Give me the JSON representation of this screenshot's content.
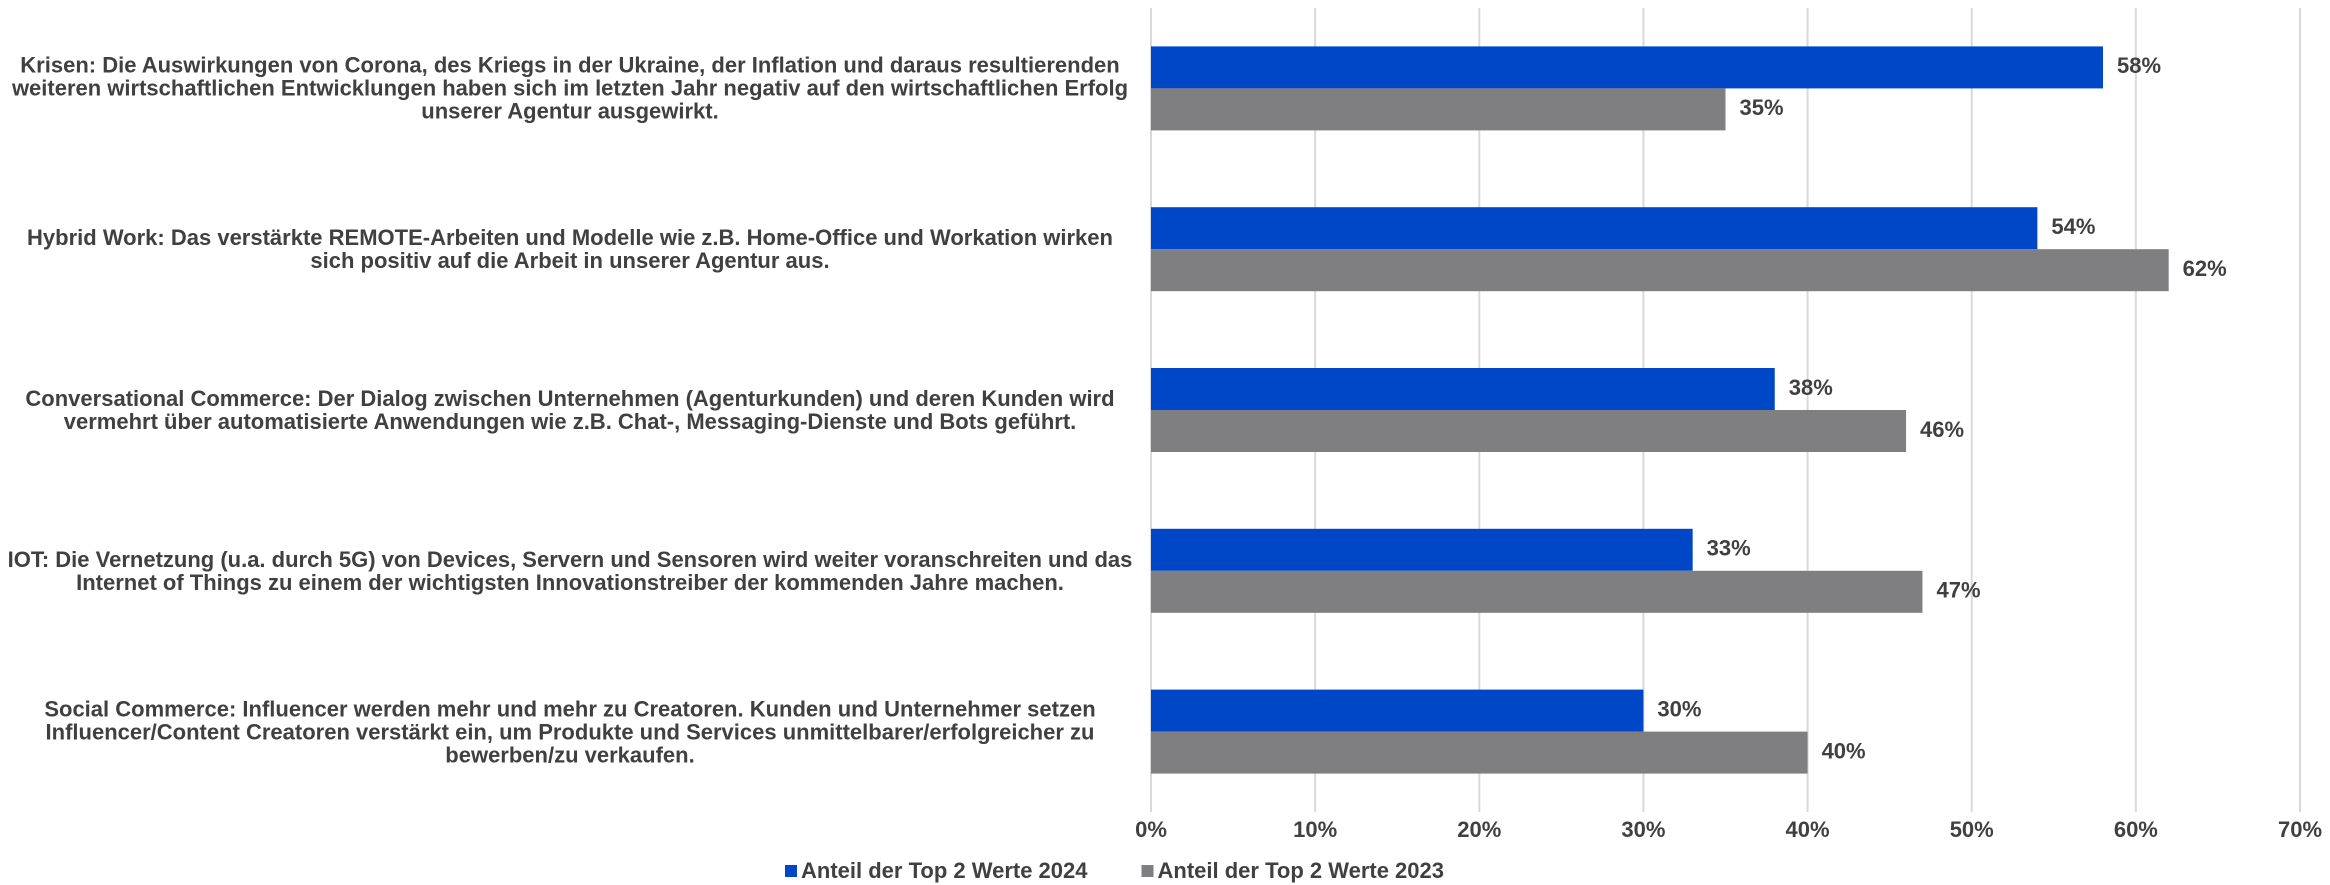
{
  "chart_data": {
    "type": "bar",
    "orientation": "horizontal",
    "categories": [
      "Krisen: Die Auswirkungen von Corona, des Kriegs in der Ukraine, der Inflation und daraus resultierenden weiteren wirtschaftlichen Entwicklungen haben sich im letzten Jahr negativ auf den wirtschaftlichen Erfolg unserer Agentur ausgewirkt.",
      "Hybrid Work: Das verstärkte REMOTE-Arbeiten und Modelle wie z.B. Home-Office und Workation wirken sich positiv auf die Arbeit in unserer Agentur aus.",
      "Conversational Commerce: Der Dialog zwischen Unternehmen (Agenturkunden) und deren Kunden wird vermehrt über automatisierte Anwendungen wie z.B. Chat-, Messaging-Dienste und Bots geführt.",
      "IOT: Die Vernetzung (u.a. durch 5G) von Devices, Servern und Sensoren wird weiter voranschreiten und das Internet of Things zu einem der wichtigsten Innovationstreiber der kommenden Jahre machen.",
      "Social Commerce: Influencer werden mehr und mehr zu Creatoren. Kunden und Unternehmer setzen Influencer/Content Creatoren verstärkt ein, um Produkte und Services unmittelbarer/erfolgreicher zu bewerben/zu verkaufen."
    ],
    "series": [
      {
        "name": "Anteil der Top 2 Werte 2024",
        "color": "#0047c8",
        "values": [
          58,
          54,
          38,
          33,
          30
        ],
        "value_labels": [
          "58%",
          "54%",
          "38%",
          "33%",
          "30%"
        ]
      },
      {
        "name": "Anteil der Top 2 Werte 2023",
        "color": "#7f7e80",
        "values": [
          35,
          62,
          46,
          47,
          40
        ],
        "value_labels": [
          "35%",
          "62%",
          "46%",
          "47%",
          "40%"
        ]
      }
    ],
    "xlim": [
      0,
      70
    ],
    "xticks": [
      {
        "value": 0,
        "label": "0%"
      },
      {
        "value": 10,
        "label": "10%"
      },
      {
        "value": 20,
        "label": "20%"
      },
      {
        "value": 30,
        "label": "30%"
      },
      {
        "value": 40,
        "label": "40%"
      },
      {
        "value": 50,
        "label": "50%"
      },
      {
        "value": 60,
        "label": "60%"
      },
      {
        "value": 70,
        "label": "70%"
      }
    ],
    "grid": true,
    "legend": "bottom"
  }
}
